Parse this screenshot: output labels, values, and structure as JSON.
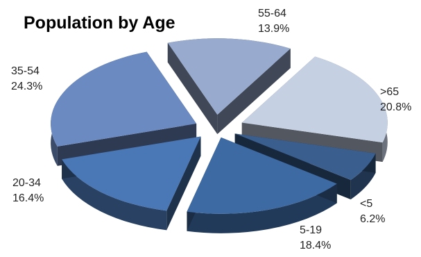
{
  "chart_data": {
    "type": "pie",
    "title": "Population by Age",
    "slices": [
      {
        "category": "<5",
        "value": 6.2,
        "value_label": "6.2%",
        "color": "#3a5f8f"
      },
      {
        "category": "5-19",
        "value": 18.4,
        "value_label": "18.4%",
        "color": "#3d6aa3"
      },
      {
        "category": "20-34",
        "value": 16.4,
        "value_label": "16.4%",
        "color": "#4a78b6"
      },
      {
        "category": "35-54",
        "value": 24.3,
        "value_label": "24.3%",
        "color": "#6c8ac2"
      },
      {
        "category": "55-64",
        "value": 13.9,
        "value_label": "13.9%",
        "color": "#98abcf"
      },
      {
        "category": ">65",
        "value": 20.8,
        "value_label": "20.8%",
        "color": "#c5d0e3"
      }
    ],
    "style": "3d-exploded"
  }
}
